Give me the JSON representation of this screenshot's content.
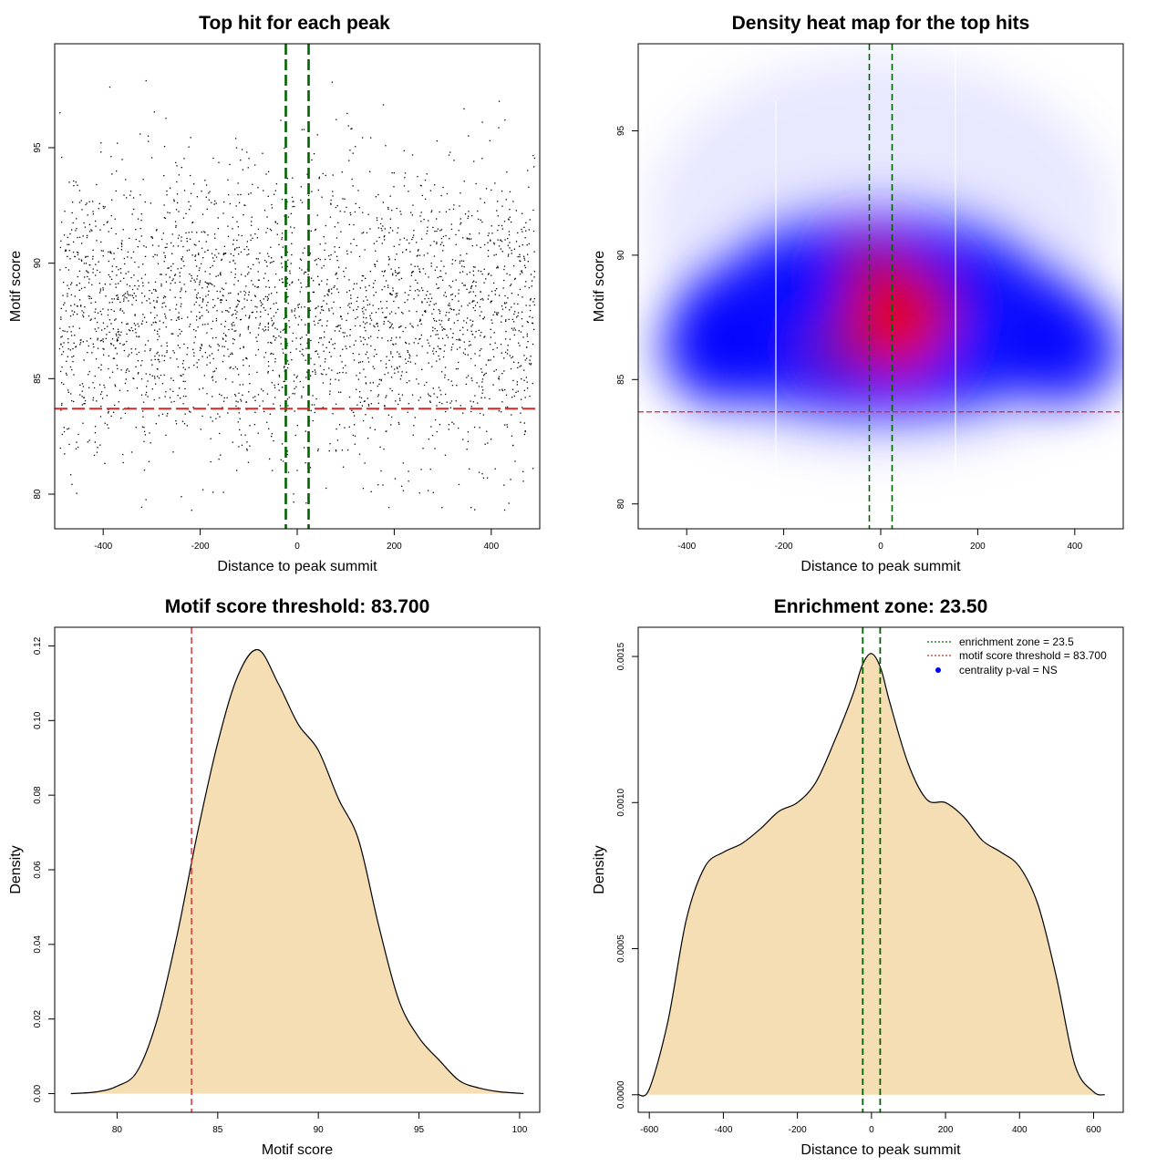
{
  "chart_data": [
    {
      "type": "scatter",
      "title": "Top hit for each peak",
      "xlabel": "Distance to peak summit",
      "ylabel": "Motif score",
      "xlim": [
        -500,
        500
      ],
      "ylim": [
        78.5,
        99.5
      ],
      "xticks": [
        -400,
        -200,
        0,
        200,
        400
      ],
      "yticks": [
        80,
        85,
        90,
        95
      ],
      "points": {
        "count": 3000,
        "x_range": [
          -500,
          500
        ],
        "y_center": 87.8,
        "y_spread": 3.2,
        "y_sample_range": [
          79,
          99
        ]
      },
      "vlines": [
        -23.5,
        23.5
      ],
      "hline": 83.7,
      "colors": {
        "points": "#000000",
        "vlines": "#006400",
        "hline": "#d62728"
      }
    },
    {
      "type": "heatmap",
      "title": "Density heat map for the top hits",
      "xlabel": "Distance to peak summit",
      "ylabel": "Motif score",
      "xlim": [
        -500,
        500
      ],
      "ylim": [
        79,
        98.5
      ],
      "xticks": [
        -400,
        -200,
        0,
        200,
        400
      ],
      "yticks": [
        80,
        85,
        90,
        95
      ],
      "vlines": [
        -23.5,
        23.5
      ],
      "hline": 83.7,
      "colors": {
        "low": "#ffffff",
        "mid": "#0000ff",
        "high": "#ff0000",
        "vlines": "#006400",
        "hline": "#d62728"
      }
    },
    {
      "type": "area",
      "title": "Motif score threshold: 83.700",
      "xlabel": "Motif score",
      "ylabel": "Density",
      "xlim": [
        76.9,
        101
      ],
      "ylim": [
        -0.005,
        0.125
      ],
      "xticks": [
        80,
        85,
        90,
        95,
        100
      ],
      "yticks": [
        0,
        0.02,
        0.04,
        0.06,
        0.08,
        0.1,
        0.12
      ],
      "ytick_labels": [
        "0.00",
        "0.02",
        "0.04",
        "0.06",
        "0.08",
        "0.10",
        "0.12"
      ],
      "x": [
        77.7,
        79,
        80,
        81,
        82,
        83,
        84,
        85,
        86,
        87,
        88,
        89,
        90,
        91,
        92,
        93,
        94,
        95,
        96,
        97,
        98,
        99,
        100,
        100.2
      ],
      "y": [
        0,
        0.0005,
        0.002,
        0.006,
        0.02,
        0.043,
        0.07,
        0.094,
        0.112,
        0.119,
        0.11,
        0.099,
        0.092,
        0.079,
        0.068,
        0.045,
        0.025,
        0.015,
        0.009,
        0.0035,
        0.0015,
        0.0005,
        0.0001,
        0
      ],
      "threshold": 83.7,
      "colors": {
        "fill": "#f5deb3",
        "line": "#000000",
        "threshold": "#d62728"
      }
    },
    {
      "type": "area",
      "title": "Enrichment zone: 23.50",
      "xlabel": "Distance to peak summit",
      "ylabel": "Density",
      "xlim": [
        -630,
        680
      ],
      "ylim": [
        -6e-05,
        0.0016
      ],
      "xticks": [
        -600,
        -400,
        -200,
        0,
        200,
        400,
        600
      ],
      "yticks": [
        0,
        0.0005,
        0.001,
        0.0015
      ],
      "ytick_labels": [
        "0.0000",
        "0.0005",
        "0.0010",
        "0.0015"
      ],
      "x": [
        -630,
        -600,
        -550,
        -500,
        -450,
        -400,
        -350,
        -300,
        -250,
        -200,
        -150,
        -100,
        -50,
        -25,
        0,
        25,
        50,
        100,
        150,
        200,
        250,
        300,
        350,
        400,
        450,
        500,
        550,
        600,
        630
      ],
      "y": [
        0,
        2e-05,
        0.00025,
        0.0006,
        0.00078,
        0.00083,
        0.00086,
        0.00091,
        0.00097,
        0.001,
        0.00107,
        0.00121,
        0.00137,
        0.00147,
        0.00151,
        0.00146,
        0.00134,
        0.00113,
        0.00101,
        0.001,
        0.00095,
        0.00087,
        0.00083,
        0.00078,
        0.00065,
        0.0004,
        0.0001,
        1e-05,
        0
      ],
      "vlines": [
        -23.5,
        23.5
      ],
      "colors": {
        "fill": "#f5deb3",
        "line": "#000000",
        "vlines": "#006400"
      },
      "legend": {
        "placement": "top-right",
        "entries": [
          {
            "label": "enrichment zone = 23.5",
            "color": "#006400",
            "style": "dotted"
          },
          {
            "label": "motif score threshold = 83.700",
            "color": "#d62728",
            "style": "dotted"
          },
          {
            "label": "centrality p-val = NS",
            "color": "#0000ff",
            "style": "point"
          }
        ]
      }
    }
  ]
}
